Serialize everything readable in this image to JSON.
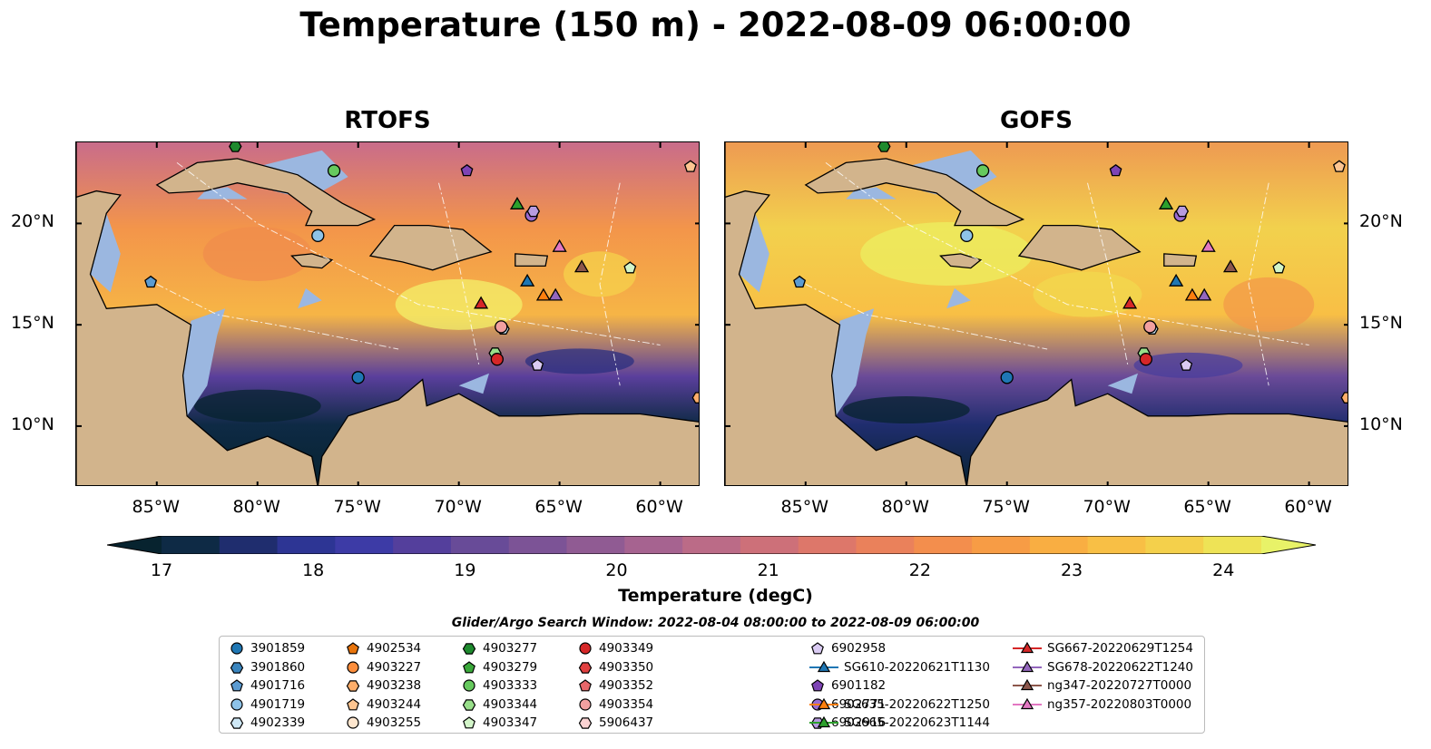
{
  "title": "Temperature (150 m) - 2022-08-09 06:00:00",
  "panels": [
    {
      "title": "RTOFS",
      "lat_labels_side": "left"
    },
    {
      "title": "GOFS",
      "lat_labels_side": "right"
    }
  ],
  "map": {
    "lon_range": [
      -89,
      -58
    ],
    "lat_range": [
      7,
      24
    ],
    "lon_ticks": [
      "85°W",
      "80°W",
      "75°W",
      "70°W",
      "65°W",
      "60°W"
    ],
    "lat_ticks": [
      "20°N",
      "15°N",
      "10°N"
    ],
    "land_color": "#d2b48c",
    "shelf_color": "#9bb7e0"
  },
  "colorbar": {
    "label": "Temperature (degC)",
    "tick_labels": [
      "17",
      "18",
      "19",
      "20",
      "21",
      "22",
      "23",
      "24"
    ],
    "range": [
      16.75,
      24.5
    ],
    "extend": "both",
    "colors": [
      "#07232f",
      "#0e2a45",
      "#1f2d6e",
      "#2d3594",
      "#3d3ba6",
      "#543f9c",
      "#684b98",
      "#7c5396",
      "#905b93",
      "#a66390",
      "#bb6b87",
      "#cd7079",
      "#dd776a",
      "#ea815b",
      "#f38e4d",
      "#f79c45",
      "#f9ae42",
      "#f8bf45",
      "#f4d04b",
      "#eee356",
      "#e8f268"
    ]
  },
  "legend": {
    "caption": "Glider/Argo Search Window: 2022-08-04 08:00:00 to 2022-08-09 06:00:00",
    "items": [
      {
        "label": "3901859",
        "marker": "circle",
        "color": "#1f77b4"
      },
      {
        "label": "3901860",
        "marker": "hexagon",
        "color": "#3a85be"
      },
      {
        "label": "4901716",
        "marker": "pentagon",
        "color": "#5b9bd1"
      },
      {
        "label": "4901719",
        "marker": "circle",
        "color": "#8ec3e8"
      },
      {
        "label": "4902339",
        "marker": "hexagon",
        "color": "#cfe8f6"
      },
      {
        "label": "4902534",
        "marker": "pentagon",
        "color": "#e8740c"
      },
      {
        "label": "4903227",
        "marker": "circle",
        "color": "#fd8e3c"
      },
      {
        "label": "4903238",
        "marker": "hexagon",
        "color": "#fdae6b"
      },
      {
        "label": "4903244",
        "marker": "pentagon",
        "color": "#fdc591"
      },
      {
        "label": "4903255",
        "marker": "circle",
        "color": "#fee6ce"
      },
      {
        "label": "4903277",
        "marker": "hexagon",
        "color": "#1e8a2e"
      },
      {
        "label": "4903279",
        "marker": "pentagon",
        "color": "#3aa83a"
      },
      {
        "label": "4903333",
        "marker": "circle",
        "color": "#66c95e"
      },
      {
        "label": "4903344",
        "marker": "hexagon",
        "color": "#98df8a"
      },
      {
        "label": "4903347",
        "marker": "pentagon",
        "color": "#d3f5c9"
      },
      {
        "label": "4903349",
        "marker": "circle",
        "color": "#d62728"
      },
      {
        "label": "4903350",
        "marker": "hexagon",
        "color": "#e04040"
      },
      {
        "label": "4903352",
        "marker": "pentagon",
        "color": "#e8676a"
      },
      {
        "label": "4903354",
        "marker": "circle",
        "color": "#f2a0a0"
      },
      {
        "label": "5906437",
        "marker": "hexagon",
        "color": "#fad2d2"
      },
      {
        "label": "6901182",
        "marker": "pentagon",
        "color": "#7e44b5"
      },
      {
        "label": "6902771",
        "marker": "circle",
        "color": "#9b6bd0"
      },
      {
        "label": "6902916",
        "marker": "hexagon",
        "color": "#b79be0"
      },
      {
        "label": "6902958",
        "marker": "pentagon",
        "color": "#dacbf3"
      },
      {
        "label": "SG610-20220621T1130",
        "marker": "triangle-line",
        "color": "#1f77b4"
      },
      {
        "label": "SG635-20220622T1250",
        "marker": "triangle-line",
        "color": "#ff7f0e"
      },
      {
        "label": "SG665-20220623T1144",
        "marker": "triangle-line",
        "color": "#2ca02c"
      },
      {
        "label": "SG667-20220629T1254",
        "marker": "triangle-line",
        "color": "#d62728"
      },
      {
        "label": "SG678-20220622T1240",
        "marker": "triangle-line",
        "color": "#9467bd"
      },
      {
        "label": "ng347-20220727T0000",
        "marker": "triangle-line",
        "color": "#8c564b"
      },
      {
        "label": "ng357-20220803T0000",
        "marker": "triangle-line",
        "color": "#e377c2"
      }
    ]
  },
  "observations": [
    {
      "id": "3901859",
      "lon": -75,
      "lat": 12.4
    },
    {
      "id": "4901716",
      "lon": -85.3,
      "lat": 17.1
    },
    {
      "id": "4901719",
      "lon": -77,
      "lat": 19.4
    },
    {
      "id": "4902339",
      "lon": -67.8,
      "lat": 14.8
    },
    {
      "id": "4903244",
      "lon": -58.5,
      "lat": 22.8
    },
    {
      "id": "4903238",
      "lon": -58.1,
      "lat": 11.4
    },
    {
      "id": "4903277",
      "lon": -81.1,
      "lat": 23.8
    },
    {
      "id": "4903333",
      "lon": -76.2,
      "lat": 22.6
    },
    {
      "id": "4903344",
      "lon": -68.2,
      "lat": 13.6
    },
    {
      "id": "4903347",
      "lon": -61.5,
      "lat": 17.8
    },
    {
      "id": "4903349",
      "lon": -68.1,
      "lat": 13.3
    },
    {
      "id": "4903354",
      "lon": -67.9,
      "lat": 14.9
    },
    {
      "id": "6901182",
      "lon": -69.6,
      "lat": 22.6
    },
    {
      "id": "6902771",
      "lon": -66.4,
      "lat": 20.4
    },
    {
      "id": "6902916",
      "lon": -66.3,
      "lat": 20.6
    },
    {
      "id": "6902958",
      "lon": -66.1,
      "lat": 13.0
    },
    {
      "id": "SG610-20220621T1130",
      "lon": -66.6,
      "lat": 17.1
    },
    {
      "id": "SG635-20220622T1250",
      "lon": -65.8,
      "lat": 16.4
    },
    {
      "id": "SG665-20220623T1144",
      "lon": -67.1,
      "lat": 20.9
    },
    {
      "id": "SG667-20220629T1254",
      "lon": -68.9,
      "lat": 16.0
    },
    {
      "id": "SG678-20220622T1240",
      "lon": -65.2,
      "lat": 16.4
    },
    {
      "id": "ng347-20220727T0000",
      "lon": -63.9,
      "lat": 17.8
    },
    {
      "id": "ng357-20220803T0000",
      "lon": -65.0,
      "lat": 18.8
    }
  ]
}
